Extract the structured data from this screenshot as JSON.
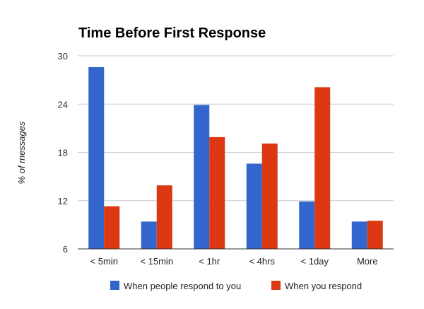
{
  "chart_data": {
    "type": "bar",
    "title": "Time Before First Response",
    "xlabel": "",
    "ylabel": "% of messages",
    "categories": [
      "< 5min",
      "< 15min",
      "< 1hr",
      "< 4hrs",
      "< 1day",
      "More"
    ],
    "series": [
      {
        "name": "When people respond to you",
        "color": "#3366cc",
        "values": [
          28.6,
          9.4,
          23.9,
          16.6,
          11.9,
          9.4
        ]
      },
      {
        "name": "When you respond",
        "color": "#dc3912",
        "values": [
          11.3,
          13.9,
          19.9,
          19.1,
          26.1,
          9.5
        ]
      }
    ],
    "ylim": [
      6,
      30
    ],
    "yticks": [
      "6",
      "12",
      "18",
      "24",
      "30"
    ],
    "grid": true,
    "legend_position": "bottom"
  }
}
